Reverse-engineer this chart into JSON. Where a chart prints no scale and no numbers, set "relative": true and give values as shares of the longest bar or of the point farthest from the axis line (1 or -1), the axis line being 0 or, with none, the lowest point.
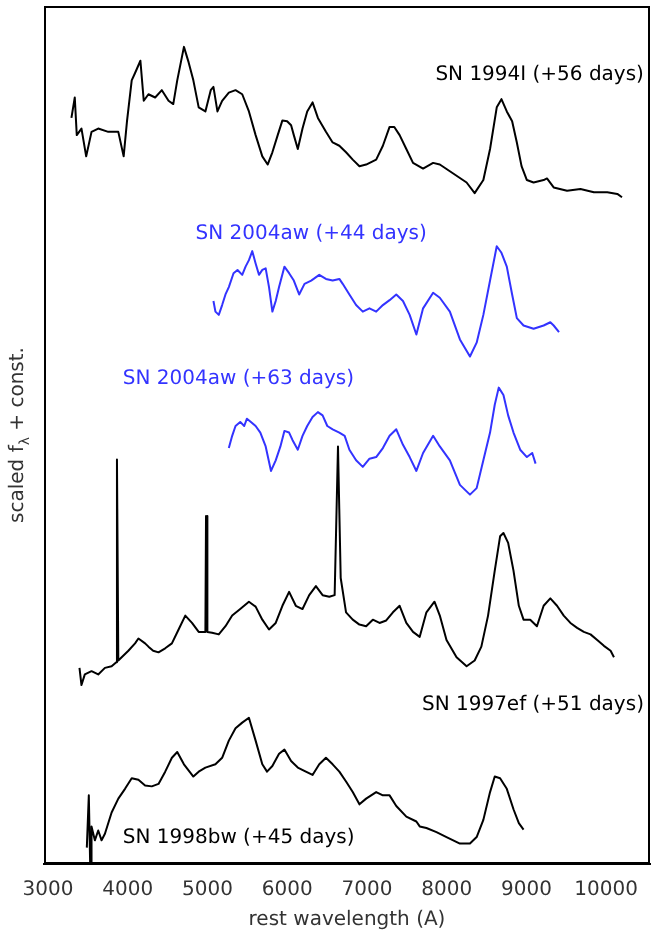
{
  "chart_data": {
    "type": "line",
    "relative": true,
    "xlabel": "rest wavelength (A)",
    "ylabel": "scaled f$_{λ}$ + const.",
    "xlim": [
      2950,
      10550
    ],
    "xticks": [
      3000,
      4000,
      5000,
      6000,
      7000,
      8000,
      9000,
      10000
    ],
    "series": [
      {
        "name": "SN 1994I (+56 days)",
        "color": "#000000",
        "x": [
          3294,
          3336,
          3361,
          3420,
          3479,
          3546,
          3630,
          3756,
          3882,
          3949,
          3991,
          4050,
          4092,
          4159,
          4201,
          4260,
          4344,
          4428,
          4512,
          4571,
          4621,
          4705,
          4764,
          4823,
          4890,
          4974,
          5041,
          5075,
          5125,
          5184,
          5268,
          5352,
          5436,
          5520,
          5604,
          5688,
          5755,
          5814,
          5881,
          5940,
          5999,
          6049,
          6083,
          6133,
          6192,
          6251,
          6318,
          6385,
          6486,
          6570,
          6654,
          6738,
          6822,
          6906,
          6990,
          7116,
          7200,
          7284,
          7343,
          7410,
          7494,
          7578,
          7704,
          7830,
          7914,
          8082,
          8250,
          8351,
          8460,
          8544,
          8628,
          8687,
          8754,
          8821,
          8880,
          8939,
          9006,
          9090,
          9216,
          9258,
          9342,
          9510,
          9678,
          9846,
          10014,
          10140,
          10199
        ],
        "values": [
          0.913,
          0.938,
          0.892,
          0.9,
          0.866,
          0.896,
          0.9,
          0.896,
          0.896,
          0.866,
          0.909,
          0.959,
          0.968,
          0.983,
          0.934,
          0.942,
          0.938,
          0.947,
          0.934,
          0.93,
          0.959,
          1,
          0.981,
          0.959,
          0.926,
          0.921,
          0.947,
          0.951,
          0.921,
          0.934,
          0.944,
          0.947,
          0.942,
          0.921,
          0.892,
          0.866,
          0.856,
          0.871,
          0.892,
          0.91,
          0.909,
          0.904,
          0.892,
          0.875,
          0.9,
          0.921,
          0.932,
          0.913,
          0.896,
          0.883,
          0.879,
          0.871,
          0.862,
          0.854,
          0.856,
          0.862,
          0.879,
          0.902,
          0.902,
          0.892,
          0.875,
          0.858,
          0.851,
          0.858,
          0.856,
          0.845,
          0.834,
          0.821,
          0.837,
          0.875,
          0.926,
          0.936,
          0.921,
          0.909,
          0.883,
          0.854,
          0.837,
          0.834,
          0.837,
          0.839,
          0.828,
          0.824,
          0.826,
          0.822,
          0.822,
          0.82,
          0.816
        ]
      },
      {
        "name": "SN 2004aw (+44 days)",
        "color": "#3333ff",
        "x": [
          5075,
          5100,
          5142,
          5184,
          5226,
          5268,
          5327,
          5377,
          5436,
          5478,
          5520,
          5562,
          5604,
          5646,
          5688,
          5730,
          5772,
          5814,
          5856,
          5898,
          5965,
          6024,
          6083,
          6150,
          6217,
          6301,
          6402,
          6486,
          6570,
          6654,
          6696,
          6780,
          6864,
          6948,
          7032,
          7116,
          7200,
          7284,
          7368,
          7452,
          7536,
          7620,
          7704,
          7830,
          7914,
          8040,
          8166,
          8292,
          8376,
          8460,
          8544,
          8628,
          8687,
          8754,
          8821,
          8880,
          8964,
          9090,
          9216,
          9300,
          9342,
          9409
        ],
        "values": [
          0.689,
          0.676,
          0.672,
          0.684,
          0.697,
          0.706,
          0.723,
          0.727,
          0.721,
          0.731,
          0.739,
          0.75,
          0.735,
          0.721,
          0.727,
          0.729,
          0.706,
          0.676,
          0.689,
          0.706,
          0.731,
          0.723,
          0.714,
          0.697,
          0.71,
          0.714,
          0.721,
          0.716,
          0.714,
          0.716,
          0.71,
          0.697,
          0.684,
          0.676,
          0.68,
          0.676,
          0.684,
          0.69,
          0.697,
          0.689,
          0.672,
          0.648,
          0.68,
          0.699,
          0.693,
          0.676,
          0.642,
          0.621,
          0.638,
          0.672,
          0.714,
          0.756,
          0.748,
          0.731,
          0.697,
          0.668,
          0.659,
          0.655,
          0.659,
          0.663,
          0.659,
          0.651
        ]
      },
      {
        "name": "SN 2004aw (+63 days)",
        "color": "#3333ff",
        "x": [
          5268,
          5310,
          5352,
          5411,
          5461,
          5495,
          5545,
          5604,
          5663,
          5730,
          5797,
          5856,
          5915,
          5965,
          6024,
          6066,
          6133,
          6192,
          6251,
          6318,
          6385,
          6444,
          6503,
          6570,
          6654,
          6721,
          6780,
          6864,
          6948,
          7032,
          7116,
          7200,
          7284,
          7368,
          7452,
          7536,
          7620,
          7704,
          7830,
          7914,
          8040,
          8166,
          8292,
          8376,
          8460,
          8544,
          8603,
          8653,
          8712,
          8771,
          8838,
          8922,
          9006,
          9073,
          9115
        ],
        "values": [
          0.509,
          0.524,
          0.536,
          0.541,
          0.536,
          0.545,
          0.541,
          0.536,
          0.528,
          0.511,
          0.481,
          0.494,
          0.511,
          0.53,
          0.528,
          0.519,
          0.507,
          0.524,
          0.536,
          0.547,
          0.553,
          0.549,
          0.536,
          0.532,
          0.528,
          0.524,
          0.507,
          0.494,
          0.486,
          0.496,
          0.498,
          0.509,
          0.524,
          0.532,
          0.513,
          0.498,
          0.481,
          0.503,
          0.524,
          0.511,
          0.494,
          0.464,
          0.452,
          0.46,
          0.494,
          0.528,
          0.562,
          0.583,
          0.574,
          0.549,
          0.528,
          0.507,
          0.498,
          0.503,
          0.49
        ]
      },
      {
        "name": "SN 1997ef (+51 days)",
        "color": "#000000",
        "x": [
          3395,
          3420,
          3462,
          3546,
          3630,
          3714,
          3798,
          3857,
          3865,
          3882,
          3924,
          4008,
          4092,
          4134,
          4218,
          4260,
          4319,
          4386,
          4470,
          4554,
          4638,
          4722,
          4806,
          4890,
          4974,
          4982,
          4999,
          5058,
          5142,
          5226,
          5310,
          5411,
          5520,
          5604,
          5688,
          5772,
          5856,
          5940,
          6024,
          6108,
          6192,
          6276,
          6360,
          6444,
          6528,
          6595,
          6637,
          6671,
          6738,
          6822,
          6906,
          6990,
          7074,
          7158,
          7242,
          7326,
          7410,
          7494,
          7578,
          7662,
          7746,
          7847,
          7914,
          7998,
          8124,
          8250,
          8351,
          8435,
          8519,
          8603,
          8670,
          8712,
          8771,
          8838,
          8905,
          8964,
          9048,
          9132,
          9216,
          9300,
          9384,
          9468,
          9552,
          9636,
          9720,
          9804,
          9888,
          9972,
          10056,
          10098
        ],
        "values": [
          0.24,
          0.219,
          0.232,
          0.236,
          0.232,
          0.24,
          0.242,
          0.247,
          0.495,
          0.249,
          0.253,
          0.261,
          0.27,
          0.276,
          0.27,
          0.266,
          0.261,
          0.259,
          0.264,
          0.27,
          0.287,
          0.304,
          0.295,
          0.284,
          0.284,
          0.426,
          0.284,
          0.283,
          0.281,
          0.291,
          0.304,
          0.312,
          0.321,
          0.315,
          0.299,
          0.287,
          0.295,
          0.316,
          0.333,
          0.316,
          0.312,
          0.329,
          0.34,
          0.329,
          0.327,
          0.329,
          0.511,
          0.35,
          0.308,
          0.299,
          0.293,
          0.291,
          0.299,
          0.295,
          0.298,
          0.308,
          0.316,
          0.295,
          0.284,
          0.278,
          0.308,
          0.321,
          0.304,
          0.274,
          0.253,
          0.242,
          0.249,
          0.266,
          0.304,
          0.359,
          0.401,
          0.405,
          0.393,
          0.359,
          0.316,
          0.299,
          0.299,
          0.291,
          0.316,
          0.325,
          0.316,
          0.304,
          0.295,
          0.289,
          0.284,
          0.281,
          0.274,
          0.267,
          0.261,
          0.253
        ]
      },
      {
        "name": "SN 1998bw (+45 days)",
        "color": "#000000",
        "x": [
          3487,
          3512,
          3529,
          3546,
          3588,
          3630,
          3672,
          3714,
          3798,
          3882,
          3966,
          4050,
          4134,
          4218,
          4302,
          4386,
          4470,
          4554,
          4621,
          4705,
          4823,
          4890,
          4974,
          5100,
          5184,
          5268,
          5352,
          5436,
          5520,
          5604,
          5688,
          5747,
          5814,
          5898,
          5965,
          6049,
          6133,
          6234,
          6318,
          6402,
          6486,
          6570,
          6654,
          6738,
          6822,
          6906,
          6990,
          7116,
          7200,
          7284,
          7368,
          7494,
          7620,
          7662,
          7746,
          7872,
          7998,
          8166,
          8292,
          8376,
          8460,
          8544,
          8603,
          8670,
          8754,
          8838,
          8905,
          8964
        ],
        "values": [
          0.02,
          0.084,
          0,
          0.046,
          0.029,
          0.041,
          0.029,
          0.037,
          0.063,
          0.08,
          0.092,
          0.105,
          0.103,
          0.096,
          0.095,
          0.098,
          0.113,
          0.13,
          0.137,
          0.122,
          0.107,
          0.113,
          0.118,
          0.122,
          0.13,
          0.151,
          0.166,
          0.173,
          0.179,
          0.151,
          0.122,
          0.113,
          0.12,
          0.135,
          0.14,
          0.126,
          0.118,
          0.113,
          0.109,
          0.122,
          0.13,
          0.122,
          0.113,
          0.101,
          0.088,
          0.073,
          0.08,
          0.088,
          0.084,
          0.084,
          0.071,
          0.058,
          0.052,
          0.046,
          0.044,
          0.039,
          0.033,
          0.025,
          0.025,
          0.033,
          0.054,
          0.088,
          0.107,
          0.105,
          0.092,
          0.067,
          0.05,
          0.042
        ]
      }
    ]
  }
}
